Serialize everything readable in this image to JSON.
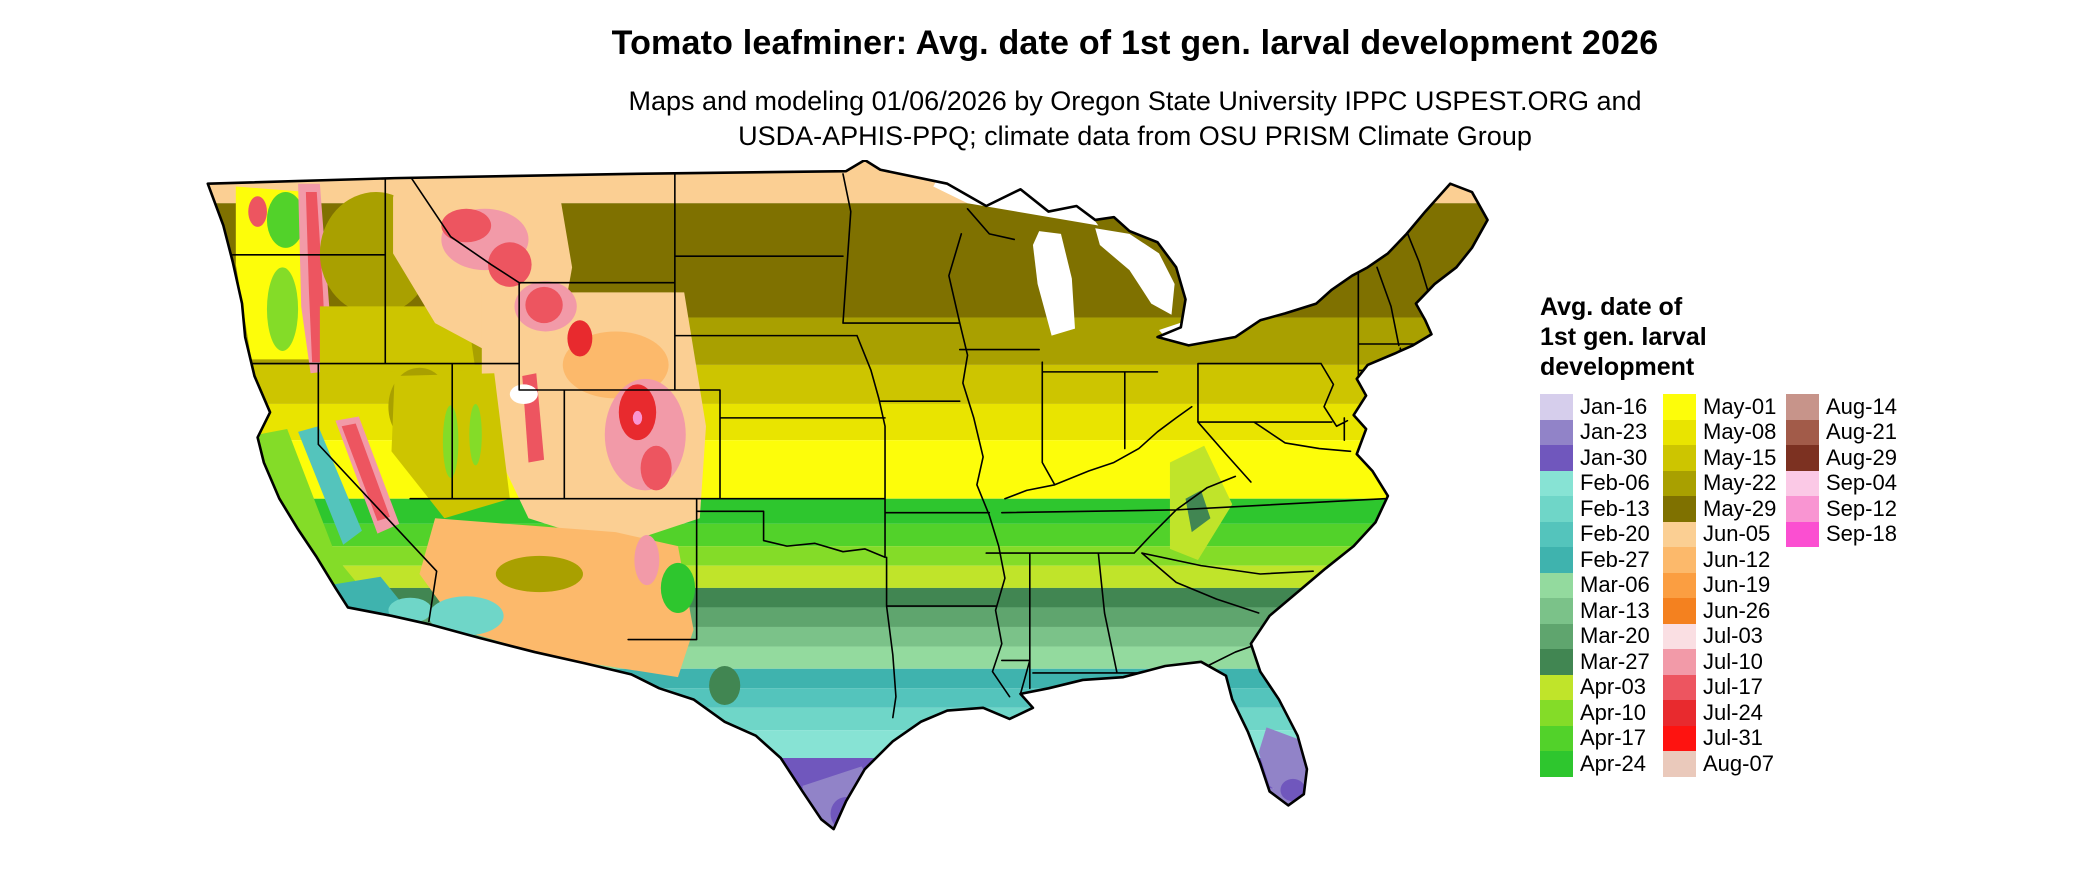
{
  "title": "Tomato leafminer: Avg. date of 1st gen. larval development 2026",
  "subtitle": {
    "line1": "Maps and modeling 01/06/2026 by Oregon State University IPPC USPEST.ORG and",
    "line2": "USDA-APHIS-PPQ; climate data from OSU PRISM Climate Group"
  },
  "legend": {
    "title_lines": [
      "Avg. date of",
      "1st gen. larval",
      "development"
    ],
    "entries": [
      {
        "label": "Jan-16",
        "color": "#d6ceec"
      },
      {
        "label": "Jan-23",
        "color": "#9183c8"
      },
      {
        "label": "Jan-30",
        "color": "#7057bd"
      },
      {
        "label": "Feb-06",
        "color": "#87e3d4"
      },
      {
        "label": "Feb-13",
        "color": "#6fd6c8"
      },
      {
        "label": "Feb-20",
        "color": "#54c4bc"
      },
      {
        "label": "Feb-27",
        "color": "#3fb3ae"
      },
      {
        "label": "Mar-06",
        "color": "#93da9e"
      },
      {
        "label": "Mar-13",
        "color": "#7bc289"
      },
      {
        "label": "Mar-20",
        "color": "#5fa56e"
      },
      {
        "label": "Mar-27",
        "color": "#418652"
      },
      {
        "label": "Apr-03",
        "color": "#c0e42a"
      },
      {
        "label": "Apr-10",
        "color": "#84dc28"
      },
      {
        "label": "Apr-17",
        "color": "#52d22a"
      },
      {
        "label": "Apr-24",
        "color": "#2ec62e"
      },
      {
        "label": "May-01",
        "color": "#fdfd0a"
      },
      {
        "label": "May-08",
        "color": "#e9e400"
      },
      {
        "label": "May-15",
        "color": "#cdc500"
      },
      {
        "label": "May-22",
        "color": "#a9a000"
      },
      {
        "label": "May-29",
        "color": "#7f7100"
      },
      {
        "label": "Jun-05",
        "color": "#fbcf93"
      },
      {
        "label": "Jun-12",
        "color": "#fcb96b"
      },
      {
        "label": "Jun-19",
        "color": "#fb9e41"
      },
      {
        "label": "Jun-26",
        "color": "#f4811f"
      },
      {
        "label": "Jul-03",
        "color": "#fadfe3"
      },
      {
        "label": "Jul-10",
        "color": "#f29aa8"
      },
      {
        "label": "Jul-17",
        "color": "#ed5560"
      },
      {
        "label": "Jul-24",
        "color": "#e82a2e"
      },
      {
        "label": "Jul-31",
        "color": "#fe1310"
      },
      {
        "label": "Aug-07",
        "color": "#eac9bb"
      },
      {
        "label": "Aug-14",
        "color": "#c7948a"
      },
      {
        "label": "Aug-21",
        "color": "#a25b49"
      },
      {
        "label": "Aug-29",
        "color": "#7c3121"
      },
      {
        "label": "Sep-04",
        "color": "#fbc9e6"
      },
      {
        "label": "Sep-12",
        "color": "#f995d2"
      },
      {
        "label": "Sep-18",
        "color": "#fb4fd1"
      }
    ]
  },
  "map": {
    "description": "Contiguous United States raster map colored by average date of first generation larval development; black state borders",
    "water_color": "#ffffff",
    "state_border_color": "#000000",
    "band_order_north_to_south": [
      "Jun-05",
      "May-29",
      "May-22",
      "May-15",
      "May-08",
      "May-01",
      "Apr-24",
      "Apr-17",
      "Apr-10",
      "Apr-03",
      "Mar-27",
      "Mar-20",
      "Mar-13",
      "Mar-06",
      "Feb-27",
      "Feb-20",
      "Feb-13",
      "Feb-06",
      "Jan-30",
      "Jan-23",
      "Jan-16"
    ],
    "features": [
      {
        "name": "pacific-northwest-lowlands",
        "date": "May-01"
      },
      {
        "name": "puget-sound-green",
        "date": "Apr-17"
      },
      {
        "name": "willamette-valley-green",
        "date": "Apr-10"
      },
      {
        "name": "olympic-mountains-red",
        "date": "Jul-17"
      },
      {
        "name": "cascades-pink",
        "date": "Jul-10"
      },
      {
        "name": "cascades-red",
        "date": "Jul-17"
      },
      {
        "name": "columbia-basin-olive",
        "date": "May-22"
      },
      {
        "name": "oregon-high-desert-olive",
        "date": "May-15"
      },
      {
        "name": "northern-rockies-peach",
        "date": "Jun-05"
      },
      {
        "name": "northern-rockies-pink",
        "date": "Jul-10"
      },
      {
        "name": "northern-rockies-red-west",
        "date": "Jul-17"
      },
      {
        "name": "northern-rockies-red-east",
        "date": "Jul-17"
      },
      {
        "name": "wyoming-utah-colorado-peach",
        "date": "Jun-05"
      },
      {
        "name": "wyoming-basin-orange",
        "date": "Jun-12"
      },
      {
        "name": "yellowstone-pink",
        "date": "Jul-10"
      },
      {
        "name": "yellowstone-red",
        "date": "Jul-17"
      },
      {
        "name": "wind-river-red",
        "date": "Jul-24"
      },
      {
        "name": "wasatch-red",
        "date": "Jul-17"
      },
      {
        "name": "colorado-rockies-pink",
        "date": "Jul-10"
      },
      {
        "name": "colorado-rockies-red-north",
        "date": "Jul-24"
      },
      {
        "name": "colorado-rockies-red-south",
        "date": "Jul-17"
      },
      {
        "name": "colorado-peak-magenta",
        "date": "Sep-12"
      },
      {
        "name": "great-basin-olive",
        "date": "May-22"
      },
      {
        "name": "nevada-olive",
        "date": "May-15"
      },
      {
        "name": "nevada-ridge-green-west",
        "date": "Apr-10"
      },
      {
        "name": "nevada-ridge-green-east",
        "date": "Apr-10"
      },
      {
        "name": "great-salt-lake",
        "date": "water"
      },
      {
        "name": "sierra-nevada-pink",
        "date": "Jul-10"
      },
      {
        "name": "sierra-nevada-red",
        "date": "Jul-17"
      },
      {
        "name": "california-central-valley-teal",
        "date": "Feb-20"
      },
      {
        "name": "california-coast-green",
        "date": "Apr-10"
      },
      {
        "name": "socal-coast-teal",
        "date": "Feb-27"
      },
      {
        "name": "imperial-valley-aqua",
        "date": "Feb-13"
      },
      {
        "name": "arizona-new-mexico-tan",
        "date": "Jun-12"
      },
      {
        "name": "arizona-low-desert-aqua",
        "date": "Feb-13"
      },
      {
        "name": "mogollon-rim-olive",
        "date": "May-22"
      },
      {
        "name": "new-mexico-mountains-pink",
        "date": "Jul-10"
      },
      {
        "name": "new-mexico-green",
        "date": "Apr-24"
      },
      {
        "name": "trans-pecos-green",
        "date": "Mar-27"
      },
      {
        "name": "appalachia-chartreuse",
        "date": "Apr-03"
      },
      {
        "name": "appalachia-ridge-green",
        "date": "Mar-27"
      },
      {
        "name": "south-texas-purple",
        "date": "Jan-23"
      },
      {
        "name": "south-texas-deep-purple",
        "date": "Jan-30"
      },
      {
        "name": "south-florida-purple",
        "date": "Jan-23"
      },
      {
        "name": "south-florida-deep-purple",
        "date": "Jan-30"
      },
      {
        "name": "lake-superior",
        "date": "water"
      },
      {
        "name": "lake-michigan",
        "date": "water"
      },
      {
        "name": "lake-huron",
        "date": "water"
      },
      {
        "name": "lake-erie",
        "date": "water"
      },
      {
        "name": "lake-ontario",
        "date": "water"
      }
    ]
  },
  "chart_data": {
    "type": "heatmap",
    "subtype": "choropleth-map",
    "region": "Contiguous United States",
    "title": "Tomato leafminer: Avg. date of 1st gen. larval development 2026",
    "legend_title": "Avg. date of 1st gen. larval development",
    "legend_position": "right",
    "classes": [
      "Jan-16",
      "Jan-23",
      "Jan-30",
      "Feb-06",
      "Feb-13",
      "Feb-20",
      "Feb-27",
      "Mar-06",
      "Mar-13",
      "Mar-20",
      "Mar-27",
      "Apr-03",
      "Apr-10",
      "Apr-17",
      "Apr-24",
      "May-01",
      "May-08",
      "May-15",
      "May-22",
      "May-29",
      "Jun-05",
      "Jun-12",
      "Jun-19",
      "Jun-26",
      "Jul-03",
      "Jul-10",
      "Jul-17",
      "Jul-24",
      "Jul-31",
      "Aug-07",
      "Aug-14",
      "Aug-21",
      "Aug-29",
      "Sep-04",
      "Sep-12",
      "Sep-18"
    ],
    "pattern": "Dates are earliest (January, purple) in south Texas and south Florida, progress later northward (February-April teal/green across the South, May yellow/olive across the central U.S. and upper Midwest, June peach along the Canadian border) and latest (July-September red/brown/magenta) at high mountain elevations in the West"
  }
}
